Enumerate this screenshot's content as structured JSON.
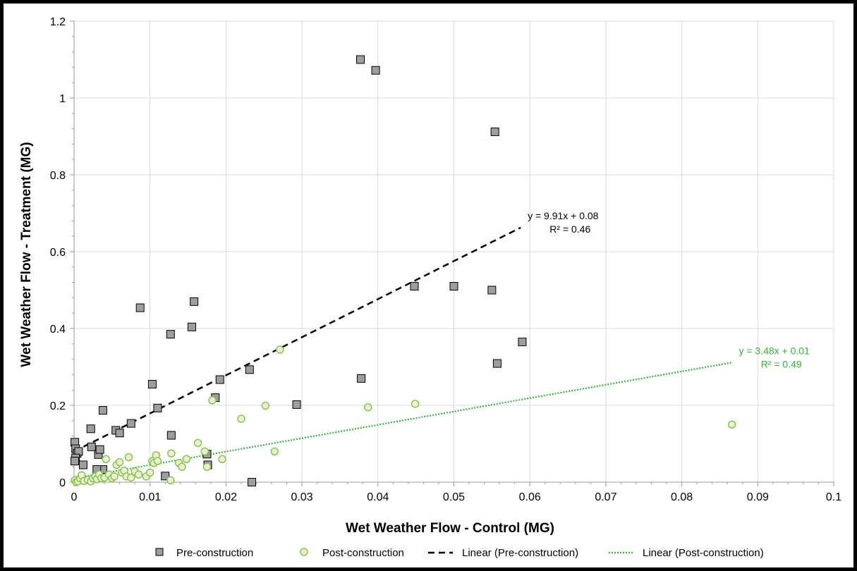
{
  "chart_data": {
    "type": "scatter",
    "xlabel": "Wet Weather Flow - Control (MG)",
    "ylabel": "Wet Weather Flow - Treatment (MG)",
    "xlim": [
      0,
      0.1
    ],
    "ylim": [
      0,
      1.2
    ],
    "x_ticks": [
      "0",
      "0.01",
      "0.02",
      "0.03",
      "0.04",
      "0.05",
      "0.06",
      "0.07",
      "0.08",
      "0.09",
      "0.1"
    ],
    "y_ticks": [
      "0",
      "0.2",
      "0.4",
      "0.6",
      "0.8",
      "1",
      "1.2"
    ],
    "x_tick_values": [
      0,
      0.01,
      0.02,
      0.03,
      0.04,
      0.05,
      0.06,
      0.07,
      0.08,
      0.09,
      0.1
    ],
    "y_tick_values": [
      0,
      0.2,
      0.4,
      0.6,
      0.8,
      1.0,
      1.2
    ],
    "grid": true,
    "legend_position": "bottom",
    "series": [
      {
        "name": "Pre-construction",
        "marker": "square",
        "color": "#9e9e9e",
        "edge_color": "#000000",
        "x": [
          0.0001,
          0.0002,
          0.0004,
          0.0006,
          0.0002,
          0.0001,
          0.0012,
          0.0022,
          0.0023,
          0.0032,
          0.0034,
          0.0038,
          0.0038,
          0.003,
          0.0055,
          0.006,
          0.0075,
          0.0087,
          0.0103,
          0.011,
          0.012,
          0.0127,
          0.0128,
          0.0155,
          0.0158,
          0.0175,
          0.0176,
          0.0186,
          0.0192,
          0.0231,
          0.0234,
          0.0293,
          0.0377,
          0.0378,
          0.0397,
          0.0448,
          0.05,
          0.055,
          0.0554,
          0.0557,
          0.059
        ],
        "y": [
          0.104,
          0.087,
          0.075,
          0.08,
          0.063,
          0.055,
          0.045,
          0.139,
          0.092,
          0.072,
          0.085,
          0.187,
          0.033,
          0.033,
          0.135,
          0.128,
          0.153,
          0.454,
          0.255,
          0.193,
          0.016,
          0.385,
          0.122,
          0.404,
          0.47,
          0.073,
          0.045,
          0.22,
          0.267,
          0.293,
          0.0,
          0.202,
          1.1,
          0.27,
          1.072,
          0.51,
          0.51,
          0.5,
          0.912,
          0.309,
          0.365
        ]
      },
      {
        "name": "Post-construction",
        "marker": "circle",
        "color": "#e8f3d4",
        "edge_color": "#8bc34a",
        "x": [
          0.0001,
          0.0003,
          0.0005,
          0.0008,
          0.001,
          0.0013,
          0.0018,
          0.0022,
          0.0025,
          0.0028,
          0.003,
          0.0033,
          0.0036,
          0.004,
          0.0042,
          0.0046,
          0.005,
          0.0053,
          0.0056,
          0.006,
          0.0063,
          0.0066,
          0.0069,
          0.0072,
          0.0075,
          0.008,
          0.0085,
          0.0095,
          0.01,
          0.0103,
          0.0105,
          0.0108,
          0.011,
          0.0127,
          0.0128,
          0.0138,
          0.0142,
          0.0148,
          0.0163,
          0.0172,
          0.0175,
          0.0182,
          0.0195,
          0.022,
          0.0252,
          0.0264,
          0.0271,
          0.0387,
          0.0449,
          0.0866
        ],
        "y": [
          0.005,
          0.0,
          0.002,
          0.01,
          0.018,
          0.003,
          0.006,
          0.002,
          0.01,
          0.015,
          0.008,
          0.02,
          0.01,
          0.012,
          0.06,
          0.02,
          0.01,
          0.015,
          0.045,
          0.052,
          0.025,
          0.03,
          0.015,
          0.065,
          0.012,
          0.028,
          0.02,
          0.015,
          0.025,
          0.055,
          0.05,
          0.07,
          0.055,
          0.005,
          0.075,
          0.05,
          0.04,
          0.06,
          0.102,
          0.08,
          0.04,
          0.213,
          0.06,
          0.165,
          0.199,
          0.08,
          0.345,
          0.195,
          0.204,
          0.15
        ]
      }
    ],
    "trendlines": [
      {
        "name": "Linear (Pre-construction)",
        "style": "dashed",
        "color": "#000000",
        "slope": 9.91,
        "intercept": 0.08,
        "x_range": [
          0,
          0.0588
        ],
        "equation": "y = 9.91x + 0.08",
        "r2": "R² = 0.46"
      },
      {
        "name": "Linear (Post-construction)",
        "style": "dotted",
        "color": "#2db82d",
        "slope": 3.48,
        "intercept": 0.01,
        "x_range": [
          0,
          0.0866
        ],
        "equation": "y = 3.48x + 0.01",
        "r2": "R² = 0.49"
      }
    ]
  }
}
